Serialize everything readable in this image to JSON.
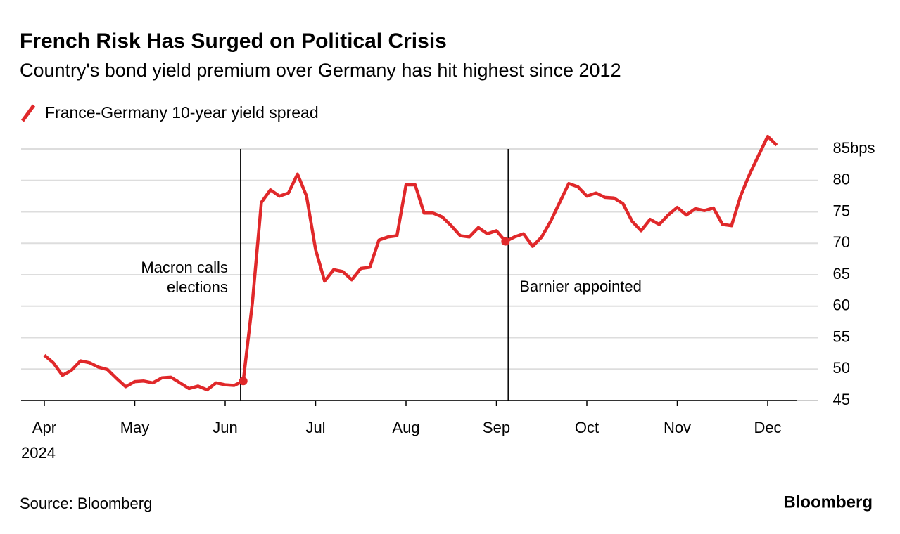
{
  "chart_data": {
    "type": "line",
    "title": "French Risk Has Surged on Political Crisis",
    "subtitle": "Country's bond yield premium over Germany has hit highest since 2012",
    "x_sublabel": "2024",
    "y_unit": "bps",
    "source": "Source: Bloomberg",
    "brand": "Bloomberg",
    "annotations": [
      "Macron calls\nelections",
      "Barnier appointed"
    ],
    "categories": [
      "Apr",
      null,
      null,
      null,
      null,
      null,
      null,
      null,
      null,
      null,
      "May",
      null,
      null,
      null,
      null,
      null,
      null,
      null,
      null,
      null,
      "Jun",
      null,
      null,
      null,
      null,
      null,
      null,
      null,
      null,
      null,
      "Jul",
      null,
      null,
      null,
      null,
      null,
      null,
      null,
      null,
      null,
      "Aug",
      null,
      null,
      null,
      null,
      null,
      null,
      null,
      null,
      null,
      "Sep",
      null,
      null,
      null,
      null,
      null,
      null,
      null,
      null,
      null,
      "Oct",
      null,
      null,
      null,
      null,
      null,
      null,
      null,
      null,
      null,
      "Nov",
      null,
      null,
      null,
      null,
      null,
      null,
      null,
      null,
      null,
      "Dec",
      null
    ],
    "series": [
      {
        "name": "France-Germany 10-year yield spread",
        "color": "#e0282a",
        "values": [
          52.2,
          51,
          49,
          49.8,
          51.3,
          51,
          50.3,
          49.9,
          48.5,
          47.2,
          48,
          48.1,
          47.8,
          48.6,
          48.7,
          47.8,
          46.9,
          47.3,
          46.7,
          47.8,
          47.5,
          47.4,
          48.1,
          60.5,
          76.5,
          78.5,
          77.5,
          78,
          81,
          77.5,
          69,
          64,
          65.8,
          65.5,
          64.2,
          66,
          66.2,
          70.5,
          71,
          71.2,
          79.3,
          79.3,
          74.8,
          74.8,
          74.2,
          72.8,
          71.2,
          71,
          72.5,
          71.5,
          72,
          70.3,
          71,
          71.5,
          69.5,
          71,
          73.5,
          76.5,
          79.5,
          79,
          77.5,
          78,
          77.3,
          77.2,
          76.3,
          73.5,
          72,
          73.8,
          73,
          74.5,
          75.7,
          74.5,
          75.5,
          75.2,
          75.6,
          73,
          72.8,
          77.5,
          81,
          84,
          87,
          85.6
        ]
      }
    ],
    "ylim": [
      45,
      85
    ],
    "yticks": [
      45,
      50,
      55,
      60,
      65,
      70,
      75,
      80,
      85
    ],
    "grid": true
  }
}
